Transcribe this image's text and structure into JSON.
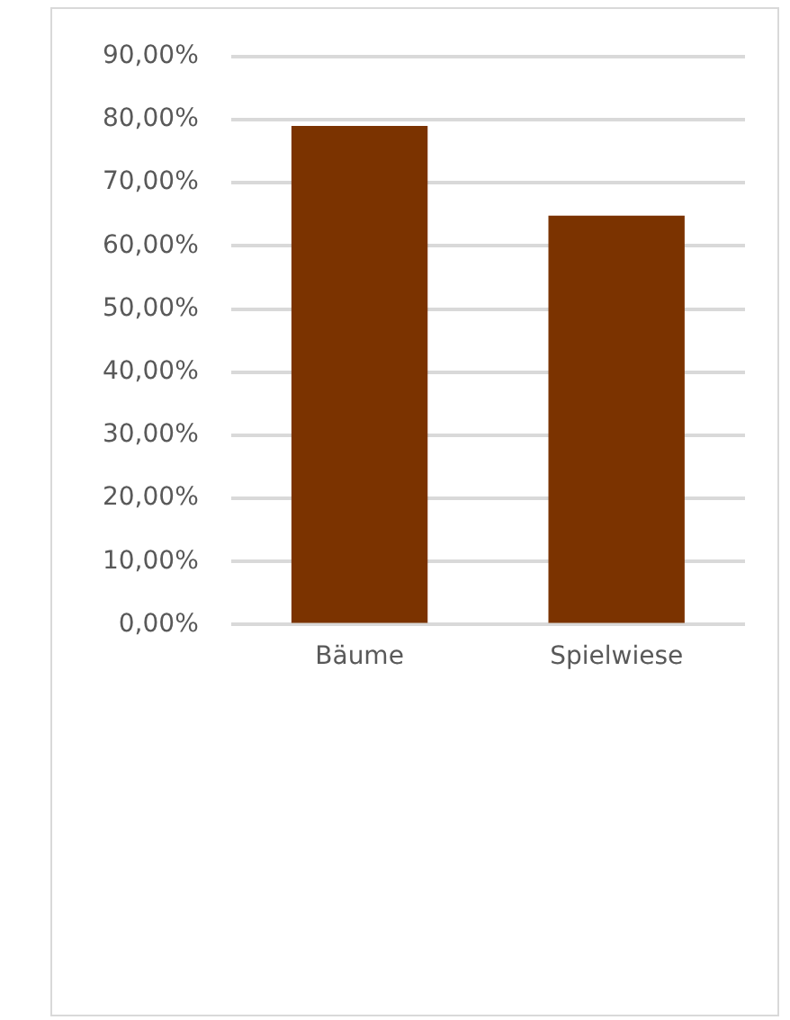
{
  "chart_data": {
    "type": "bar",
    "categories": [
      "Bäume",
      "Spielwiese"
    ],
    "values": [
      79,
      64.8
    ],
    "color": "#7b3300",
    "ylim": [
      0,
      90
    ],
    "yticks": [
      {
        "value": 0,
        "label": "0,00%"
      },
      {
        "value": 10,
        "label": "10,00%"
      },
      {
        "value": 20,
        "label": "20,00%"
      },
      {
        "value": 30,
        "label": "30,00%"
      },
      {
        "value": 40,
        "label": "40,00%"
      },
      {
        "value": 50,
        "label": "50,00%"
      },
      {
        "value": 60,
        "label": "60,00%"
      },
      {
        "value": 70,
        "label": "70,00%"
      },
      {
        "value": 80,
        "label": "80,00%"
      },
      {
        "value": 90,
        "label": "90,00%"
      }
    ],
    "grid": "y",
    "legend": false
  }
}
